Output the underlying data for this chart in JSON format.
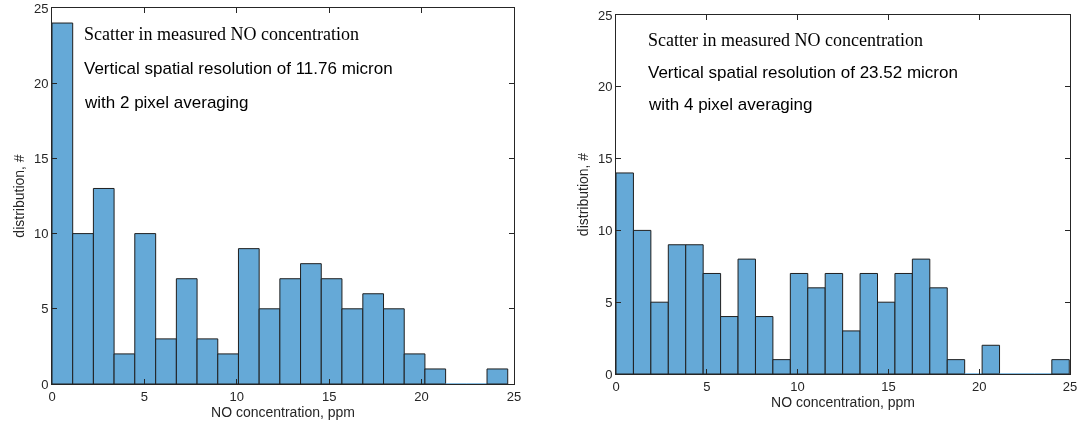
{
  "chart_data": [
    {
      "type": "histogram",
      "xlabel": "NO concentration, ppm",
      "ylabel": "distribution, #",
      "color": "#65a9d7",
      "bins": [
        0,
        1.12,
        2.24,
        3.36,
        4.48,
        5.61,
        6.73,
        7.85,
        8.97,
        10.09,
        11.21,
        12.33,
        13.45,
        14.57,
        15.69,
        16.82,
        17.94,
        19.06,
        20.18,
        21.3,
        22.42,
        23.54,
        24.66
      ],
      "values": [
        24,
        10,
        13,
        2,
        10,
        3,
        7,
        3,
        2,
        9,
        5,
        7,
        8,
        7,
        5,
        6,
        5,
        2,
        1,
        0,
        0,
        1
      ],
      "xlim": [
        0,
        25
      ],
      "xticks": [
        0,
        5,
        10,
        15,
        20,
        25
      ],
      "ylim": [
        0,
        25
      ],
      "yticks": [
        0,
        5,
        10,
        15,
        20,
        25
      ],
      "grid": false,
      "legend": false,
      "annotations": [
        "Scatter in measured NO concentration",
        "Vertical spatial resolution of 11.76 micron",
        "with 2 pixel averaging"
      ]
    },
    {
      "type": "histogram",
      "xlabel": "NO concentration, ppm",
      "ylabel": "distribution, #",
      "color": "#65a9d7",
      "bins": [
        0,
        0.96,
        1.92,
        2.88,
        3.84,
        4.8,
        5.76,
        6.72,
        7.68,
        8.64,
        9.6,
        10.56,
        11.52,
        12.48,
        13.44,
        14.4,
        15.36,
        16.32,
        17.28,
        18.24,
        19.2,
        20.16,
        21.12,
        22.08,
        23.04,
        24,
        24.96
      ],
      "values": [
        14,
        10,
        5,
        9,
        9,
        7,
        4,
        8,
        4,
        1,
        7,
        6,
        7,
        3,
        7,
        5,
        7,
        8,
        6,
        1,
        0,
        2,
        0,
        0,
        0,
        1
      ],
      "xlim": [
        0,
        25
      ],
      "xticks": [
        0,
        5,
        10,
        15,
        20,
        25
      ],
      "ylim": [
        0,
        25
      ],
      "yticks": [
        0,
        5,
        10,
        15,
        20,
        25
      ],
      "grid": false,
      "legend": false,
      "annotations": [
        "Scatter in measured NO concentration",
        "Vertical spatial resolution of 23.52 micron",
        "with 4 pixel averaging"
      ]
    }
  ]
}
